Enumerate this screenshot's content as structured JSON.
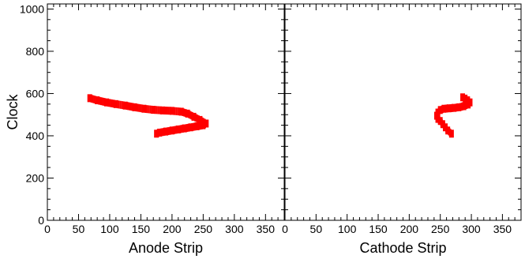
{
  "chart_data": [
    {
      "type": "scatter",
      "xlabel": "Anode Strip",
      "ylabel": "Clock",
      "xlim": [
        0,
        380
      ],
      "ylim": [
        0,
        1024
      ],
      "xticks": [
        0,
        50,
        100,
        150,
        200,
        250,
        300,
        350
      ],
      "yticks": [
        0,
        200,
        400,
        600,
        800,
        1000
      ],
      "grid": false,
      "color": "#ff0000",
      "series": [
        {
          "x": [
            68,
            80,
            95,
            110,
            125,
            140,
            155,
            170,
            185,
            200,
            215,
            225,
            235,
            245,
            255,
            250,
            240,
            230,
            220,
            210,
            200,
            190,
            180,
            175
          ],
          "y": [
            578,
            568,
            558,
            550,
            543,
            535,
            528,
            523,
            520,
            518,
            514,
            505,
            490,
            475,
            458,
            450,
            445,
            440,
            435,
            430,
            425,
            420,
            415,
            410
          ]
        }
      ]
    },
    {
      "type": "scatter",
      "xlabel": "Cathode Strip",
      "ylabel": "",
      "xlim": [
        0,
        380
      ],
      "ylim": [
        0,
        1024
      ],
      "xticks": [
        0,
        50,
        100,
        150,
        200,
        250,
        300,
        350
      ],
      "yticks": [
        0,
        200,
        400,
        600,
        800,
        1000
      ],
      "grid": false,
      "color": "#ff0000",
      "series": [
        {
          "x": [
            268,
            262,
            258,
            254,
            250,
            246,
            244,
            246,
            250,
            256,
            264,
            272,
            280,
            288,
            295,
            298,
            294,
            290,
            286
          ],
          "y": [
            410,
            425,
            440,
            455,
            470,
            480,
            495,
            510,
            522,
            528,
            530,
            532,
            535,
            540,
            548,
            558,
            568,
            576,
            582
          ]
        }
      ]
    }
  ]
}
